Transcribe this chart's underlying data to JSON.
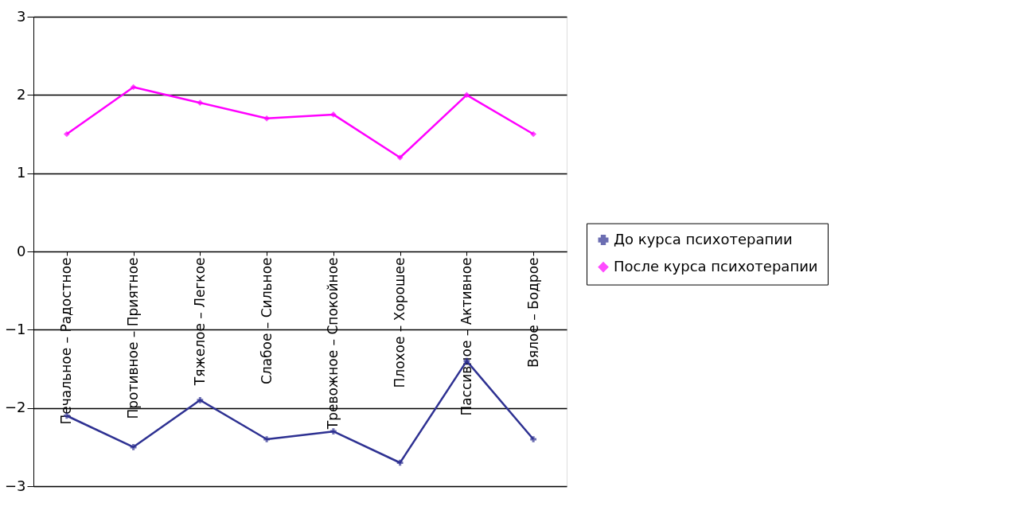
{
  "chart_data": {
    "type": "line",
    "categories": [
      "Печальное – Радостное",
      "Противное – Приятное",
      "Тяжелое – Легкое",
      "Слабое – Сильное",
      "Тревожное – Спокойное",
      "Плохое – Хорошее",
      "Пассивное – Активное",
      "Вялое – Бодрое"
    ],
    "series": [
      {
        "name": "До курса психотерапии",
        "color": "#2e3192",
        "marker": "cross",
        "values": [
          -2.1,
          -2.5,
          -1.9,
          -2.4,
          -2.3,
          -2.7,
          -1.4,
          -2.4
        ]
      },
      {
        "name": "После курса психотерапии",
        "color": "#ff00ff",
        "marker": "diamond",
        "values": [
          1.5,
          2.1,
          1.9,
          1.7,
          1.75,
          1.2,
          2.0,
          1.5
        ]
      }
    ],
    "ylim": [
      -3,
      3
    ],
    "yticks": [
      -3,
      -2,
      -1,
      0,
      1,
      2,
      3
    ],
    "grid": "y",
    "legend": "right",
    "line_style": "solid"
  }
}
